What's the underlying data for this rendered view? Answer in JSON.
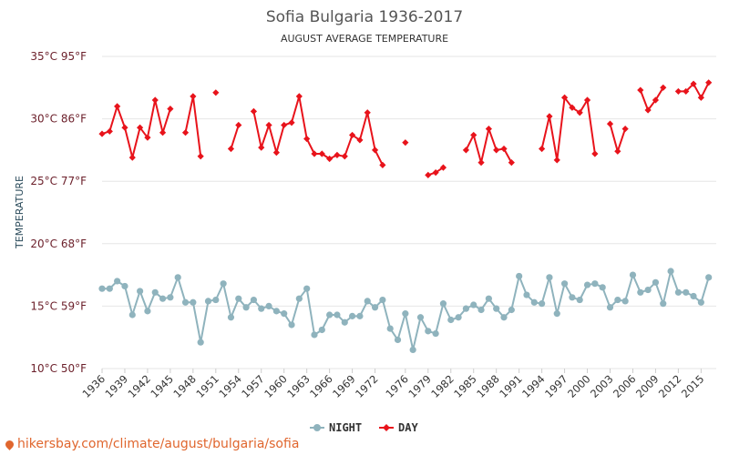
{
  "chart_data": {
    "type": "line",
    "title": "Sofia Bulgaria 1936-2017",
    "subtitle": "AUGUST AVERAGE TEMPERATURE",
    "ylabel": "TEMPERATURE",
    "ylim": [
      10,
      35
    ],
    "xlim": [
      1936,
      2017
    ],
    "y_ticks": [
      {
        "value": 35,
        "label": "35°C 95°F"
      },
      {
        "value": 30,
        "label": "30°C 86°F"
      },
      {
        "value": 25,
        "label": "25°C 77°F"
      },
      {
        "value": 20,
        "label": "20°C 68°F"
      },
      {
        "value": 15,
        "label": "15°C 59°F"
      },
      {
        "value": 10,
        "label": "10°C 50°F"
      }
    ],
    "x_ticks": [
      1936,
      1939,
      1942,
      1945,
      1948,
      1951,
      1954,
      1957,
      1960,
      1963,
      1966,
      1969,
      1972,
      1976,
      1979,
      1982,
      1985,
      1988,
      1991,
      1994,
      1997,
      2000,
      2003,
      2006,
      2009,
      2012,
      2015
    ],
    "grid": "horizontal",
    "legend_position": "bottom",
    "x": [
      1936,
      1937,
      1938,
      1939,
      1940,
      1941,
      1942,
      1943,
      1944,
      1945,
      1946,
      1947,
      1948,
      1949,
      1950,
      1951,
      1952,
      1953,
      1954,
      1955,
      1956,
      1957,
      1958,
      1959,
      1960,
      1961,
      1962,
      1963,
      1964,
      1965,
      1966,
      1967,
      1968,
      1969,
      1970,
      1971,
      1972,
      1973,
      1974,
      1975,
      1976,
      1977,
      1978,
      1979,
      1980,
      1981,
      1982,
      1983,
      1984,
      1985,
      1986,
      1987,
      1988,
      1989,
      1990,
      1991,
      1992,
      1993,
      1994,
      1995,
      1996,
      1997,
      1998,
      1999,
      2000,
      2001,
      2002,
      2003,
      2004,
      2005,
      2006,
      2007,
      2008,
      2009,
      2010,
      2011,
      2012,
      2013,
      2014,
      2015,
      2016,
      2017
    ],
    "series": [
      {
        "name": "NIGHT",
        "color": "#8fb3bd",
        "marker": "circle",
        "values": [
          16.4,
          16.4,
          17.0,
          16.6,
          14.3,
          16.2,
          14.6,
          16.1,
          15.6,
          15.7,
          17.3,
          15.3,
          15.3,
          12.1,
          15.4,
          15.5,
          16.8,
          14.1,
          15.6,
          14.9,
          15.5,
          14.8,
          15.0,
          14.6,
          14.4,
          13.5,
          15.6,
          16.4,
          12.7,
          13.1,
          14.3,
          14.3,
          13.7,
          14.2,
          14.2,
          15.4,
          14.9,
          15.5,
          13.2,
          12.3,
          14.4,
          11.5,
          14.1,
          13.0,
          12.8,
          15.2,
          13.9,
          14.1,
          14.8,
          15.1,
          14.7,
          15.6,
          14.8,
          14.1,
          14.7,
          17.4,
          15.9,
          15.3,
          15.2,
          17.3,
          14.4,
          16.8,
          15.7,
          15.5,
          16.7,
          16.8,
          16.5,
          14.9,
          15.5,
          15.4,
          17.5,
          16.1,
          16.3,
          16.9,
          15.2,
          17.8,
          16.1,
          16.1,
          15.8,
          15.3,
          17.3,
          null
        ]
      },
      {
        "name": "DAY",
        "color": "#e8131b",
        "marker": "diamond",
        "values": [
          28.8,
          29.0,
          31.0,
          29.3,
          26.9,
          29.3,
          28.5,
          31.5,
          28.9,
          30.8,
          null,
          28.9,
          31.8,
          27.0,
          null,
          32.1,
          null,
          27.6,
          29.5,
          null,
          30.6,
          27.7,
          29.5,
          27.3,
          29.5,
          29.7,
          31.8,
          28.4,
          27.2,
          27.2,
          26.8,
          27.1,
          27.0,
          28.7,
          28.3,
          30.5,
          27.5,
          26.3,
          null,
          null,
          28.1,
          null,
          null,
          25.5,
          25.7,
          26.1,
          null,
          null,
          27.5,
          28.7,
          26.5,
          29.2,
          27.5,
          27.6,
          26.5,
          null,
          null,
          null,
          27.6,
          30.2,
          26.7,
          31.7,
          30.9,
          30.5,
          31.5,
          27.2,
          null,
          29.6,
          27.4,
          29.2,
          null,
          32.3,
          30.7,
          31.5,
          32.5,
          null,
          32.2,
          32.2,
          32.8,
          31.7,
          32.9,
          null
        ]
      }
    ]
  },
  "watermark": "hikersbay.com/climate/august/bulgaria/sofia"
}
